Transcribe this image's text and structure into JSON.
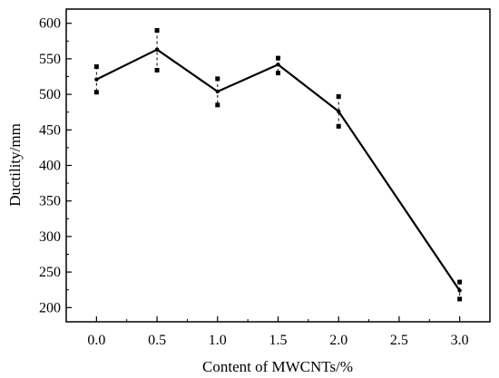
{
  "chart_data": {
    "type": "line",
    "title": "",
    "xlabel": "Content of MWCNTs/%",
    "ylabel": "Ductility/mm",
    "xlim": [
      -0.25,
      3.25
    ],
    "ylim": [
      180,
      620
    ],
    "x_ticks": [
      0.0,
      0.5,
      1.0,
      1.5,
      2.0,
      2.5,
      3.0
    ],
    "x_tick_labels": [
      "0.0",
      "0.5",
      "1.0",
      "1.5",
      "2.0",
      "2.5",
      "3.0"
    ],
    "y_ticks": [
      200,
      250,
      300,
      350,
      400,
      450,
      500,
      550,
      600
    ],
    "y_tick_labels": [
      "200",
      "250",
      "300",
      "350",
      "400",
      "450",
      "500",
      "550",
      "600"
    ],
    "grid": false,
    "legend": "none",
    "series": [
      {
        "x": [
          0.0,
          0.5,
          1.0,
          1.5,
          2.0,
          3.0
        ],
        "y": [
          521,
          563,
          504,
          542,
          476,
          224
        ],
        "y_upper": [
          539,
          590,
          522,
          551,
          497,
          236
        ],
        "y_lower": [
          503,
          534,
          485,
          530,
          455,
          212
        ],
        "color": "#000000"
      }
    ]
  }
}
